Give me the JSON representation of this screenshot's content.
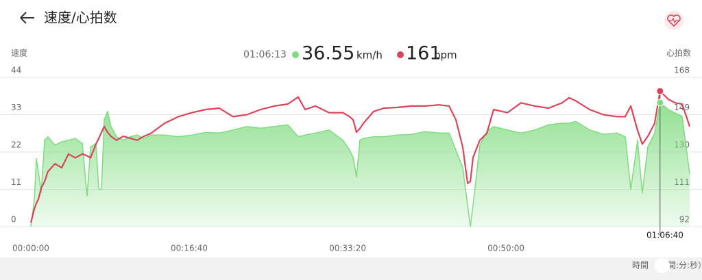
{
  "chart_data": {
    "type": "line",
    "title": "速度/心拍数",
    "y_label": "速度",
    "y2_label": "心拍数",
    "x_label": "時間",
    "x_unit": "（時間:分:秒）",
    "readout": {
      "time": "01:06:13",
      "speed": 36.55,
      "speed_unit": "km/h",
      "heart_rate": 161,
      "heart_rate_unit": "bpm"
    },
    "cursor_label": "01:06:40",
    "x": [
      0,
      22,
      35,
      48,
      65,
      87,
      108,
      152,
      195,
      238,
      281,
      325,
      355,
      377,
      411,
      429,
      446,
      463,
      485,
      506,
      541,
      584,
      628,
      671,
      714,
      758,
      844,
      931,
      1017,
      1104,
      1190,
      1277,
      1364,
      1450,
      1537,
      1623,
      1688,
      1732,
      1797,
      1883,
      1970,
      2013,
      2035,
      2056,
      2078,
      2100,
      2164,
      2229,
      2316,
      2403,
      2489,
      2576,
      2641,
      2684,
      2727,
      2758,
      2775,
      2792,
      2835,
      2879,
      2922,
      3009,
      3095,
      3182,
      3268,
      3355,
      3398,
      3442,
      3528,
      3615,
      3701,
      3753,
      3788,
      3831,
      3861,
      3896,
      3939,
      3973,
      4026,
      4069,
      4113,
      4160
    ],
    "series": [
      {
        "name": "速度",
        "color": "#7fdb7f",
        "axis": "y",
        "fill": true,
        "values": [
          0,
          8,
          20,
          16,
          10,
          25.5,
          26.5,
          24,
          25,
          25.5,
          26,
          24.5,
          9,
          23.5,
          24.5,
          11,
          11,
          31.5,
          34,
          29.5,
          26.5,
          25.5,
          26.5,
          27,
          26,
          27,
          27,
          26.5,
          27,
          27.8,
          27.6,
          28.5,
          29.5,
          29,
          29.5,
          30,
          26.5,
          27,
          27.6,
          28.5,
          25.5,
          22.5,
          20.4,
          14.7,
          25.5,
          26,
          26.5,
          26.5,
          27,
          27.2,
          28,
          27.6,
          27.6,
          22.5,
          17.4,
          6.3,
          0,
          6.3,
          24,
          28,
          29.5,
          28.5,
          27.6,
          28.5,
          30,
          30.5,
          30.5,
          31,
          28.5,
          27.2,
          27.6,
          26.5,
          11,
          25.5,
          10,
          23.5,
          27.6,
          36.55,
          34.5,
          33.5,
          32.5,
          15.4
        ]
      },
      {
        "name": "心拍数",
        "color": "#d8455a",
        "axis": "y2",
        "values": [
          94,
          101,
          104,
          106,
          111.5,
          115,
          120,
          124,
          122,
          129,
          127,
          129,
          128,
          127,
          134,
          137,
          140,
          143,
          140,
          138,
          136,
          138,
          137,
          136,
          138,
          139.5,
          144.6,
          148,
          150,
          151.6,
          152.3,
          148,
          149,
          151.6,
          153.4,
          154.4,
          158,
          151.6,
          153.4,
          150,
          150,
          148,
          146.4,
          140,
          142,
          144.6,
          150.6,
          152.3,
          152.7,
          153.4,
          153.4,
          154,
          153.4,
          146.4,
          132.4,
          114,
          115,
          127.2,
          136,
          139.5,
          151.6,
          150,
          155,
          153.4,
          152.3,
          155,
          157.6,
          156,
          151.6,
          149,
          148,
          148,
          153.4,
          141,
          134,
          138,
          144.6,
          161,
          156.8,
          155,
          154.4,
          143
        ]
      }
    ],
    "xlim": [
      0,
      4160
    ],
    "xticks": [
      {
        "value": 0,
        "label": "00:00:00"
      },
      {
        "value": 1000,
        "label": "00:16:40"
      },
      {
        "value": 2000,
        "label": "00:33:20"
      },
      {
        "value": 3000,
        "label": "00:50:00"
      }
    ],
    "ylim": [
      0,
      44
    ],
    "yticks": [
      0,
      11,
      22,
      33,
      44
    ],
    "y2lim": [
      92,
      168
    ],
    "y2ticks": [
      92,
      111,
      130,
      149,
      168
    ],
    "grid": true
  }
}
